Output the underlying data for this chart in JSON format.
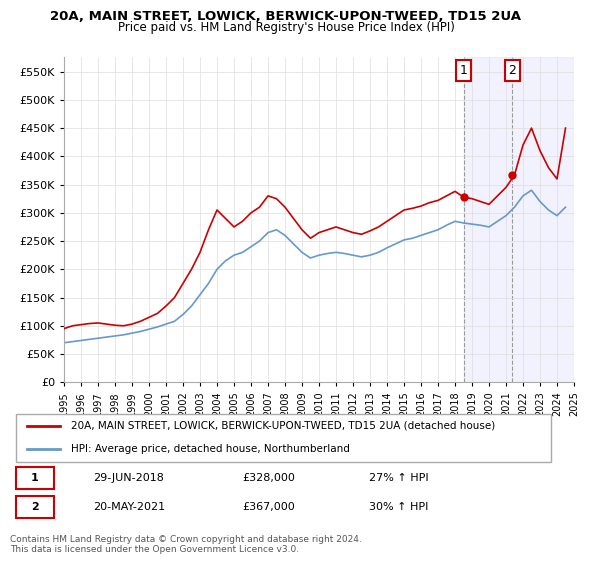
{
  "title": "20A, MAIN STREET, LOWICK, BERWICK-UPON-TWEED, TD15 2UA",
  "subtitle": "Price paid vs. HM Land Registry's House Price Index (HPI)",
  "property_label": "20A, MAIN STREET, LOWICK, BERWICK-UPON-TWEED, TD15 2UA (detached house)",
  "hpi_label": "HPI: Average price, detached house, Northumberland",
  "property_color": "#cc0000",
  "hpi_color": "#6699cc",
  "annotation1": {
    "num": "1",
    "date": "29-JUN-2018",
    "price": "£328,000",
    "pct": "27% ↑ HPI"
  },
  "annotation2": {
    "num": "2",
    "date": "20-MAY-2021",
    "price": "£367,000",
    "pct": "30% ↑ HPI"
  },
  "footer": "Contains HM Land Registry data © Crown copyright and database right 2024.\nThis data is licensed under the Open Government Licence v3.0.",
  "vline1_x": 2018.5,
  "vline2_x": 2021.38,
  "ylim": [
    0,
    575000
  ],
  "yticks": [
    0,
    50000,
    100000,
    150000,
    200000,
    250000,
    300000,
    350000,
    400000,
    450000,
    500000,
    550000
  ],
  "ytick_labels": [
    "£0",
    "£50K",
    "£100K",
    "£150K",
    "£200K",
    "£250K",
    "£300K",
    "£350K",
    "£400K",
    "£450K",
    "£500K",
    "£550K"
  ],
  "hpi_x": [
    1995.0,
    1995.5,
    1996.0,
    1996.5,
    1997.0,
    1997.5,
    1998.0,
    1998.5,
    1999.0,
    1999.5,
    2000.0,
    2000.5,
    2001.0,
    2001.5,
    2002.0,
    2002.5,
    2003.0,
    2003.5,
    2004.0,
    2004.5,
    2005.0,
    2005.5,
    2006.0,
    2006.5,
    2007.0,
    2007.5,
    2008.0,
    2008.5,
    2009.0,
    2009.5,
    2010.0,
    2010.5,
    2011.0,
    2011.5,
    2012.0,
    2012.5,
    2013.0,
    2013.5,
    2014.0,
    2014.5,
    2015.0,
    2015.5,
    2016.0,
    2016.5,
    2017.0,
    2017.5,
    2018.0,
    2018.5,
    2019.0,
    2019.5,
    2020.0,
    2020.5,
    2021.0,
    2021.5,
    2022.0,
    2022.5,
    2023.0,
    2023.5,
    2024.0,
    2024.5
  ],
  "hpi_y": [
    70000,
    72000,
    74000,
    76000,
    78000,
    80000,
    82000,
    84000,
    87000,
    90000,
    94000,
    98000,
    103000,
    108000,
    120000,
    135000,
    155000,
    175000,
    200000,
    215000,
    225000,
    230000,
    240000,
    250000,
    265000,
    270000,
    260000,
    245000,
    230000,
    220000,
    225000,
    228000,
    230000,
    228000,
    225000,
    222000,
    225000,
    230000,
    238000,
    245000,
    252000,
    255000,
    260000,
    265000,
    270000,
    278000,
    285000,
    282000,
    280000,
    278000,
    275000,
    285000,
    295000,
    310000,
    330000,
    340000,
    320000,
    305000,
    295000,
    310000
  ],
  "price_x": [
    1995.0,
    1995.5,
    1996.0,
    1996.5,
    1997.0,
    1997.5,
    1998.0,
    1998.5,
    1999.0,
    1999.5,
    2000.0,
    2000.5,
    2001.0,
    2001.5,
    2002.0,
    2002.5,
    2003.0,
    2003.5,
    2004.0,
    2004.5,
    2005.0,
    2005.5,
    2006.0,
    2006.5,
    2007.0,
    2007.5,
    2008.0,
    2008.5,
    2009.0,
    2009.5,
    2010.0,
    2010.5,
    2011.0,
    2011.5,
    2012.0,
    2012.5,
    2013.0,
    2013.5,
    2014.0,
    2014.5,
    2015.0,
    2015.5,
    2016.0,
    2016.5,
    2017.0,
    2017.5,
    2018.0,
    2018.5,
    2019.0,
    2019.5,
    2020.0,
    2020.5,
    2021.0,
    2021.5,
    2022.0,
    2022.5,
    2023.0,
    2023.5,
    2024.0,
    2024.5
  ],
  "price_y": [
    95000,
    100000,
    102000,
    104000,
    105000,
    103000,
    101000,
    100000,
    103000,
    108000,
    115000,
    122000,
    135000,
    150000,
    175000,
    200000,
    230000,
    270000,
    305000,
    290000,
    275000,
    285000,
    300000,
    310000,
    330000,
    325000,
    310000,
    290000,
    270000,
    255000,
    265000,
    270000,
    275000,
    270000,
    265000,
    262000,
    268000,
    275000,
    285000,
    295000,
    305000,
    308000,
    312000,
    318000,
    322000,
    330000,
    338000,
    328000,
    325000,
    320000,
    315000,
    330000,
    345000,
    367000,
    420000,
    450000,
    410000,
    380000,
    360000,
    450000
  ],
  "marker1_x": 2018.5,
  "marker1_y": 328000,
  "marker2_x": 2021.38,
  "marker2_y": 367000,
  "xmin": 1995,
  "xmax": 2025
}
